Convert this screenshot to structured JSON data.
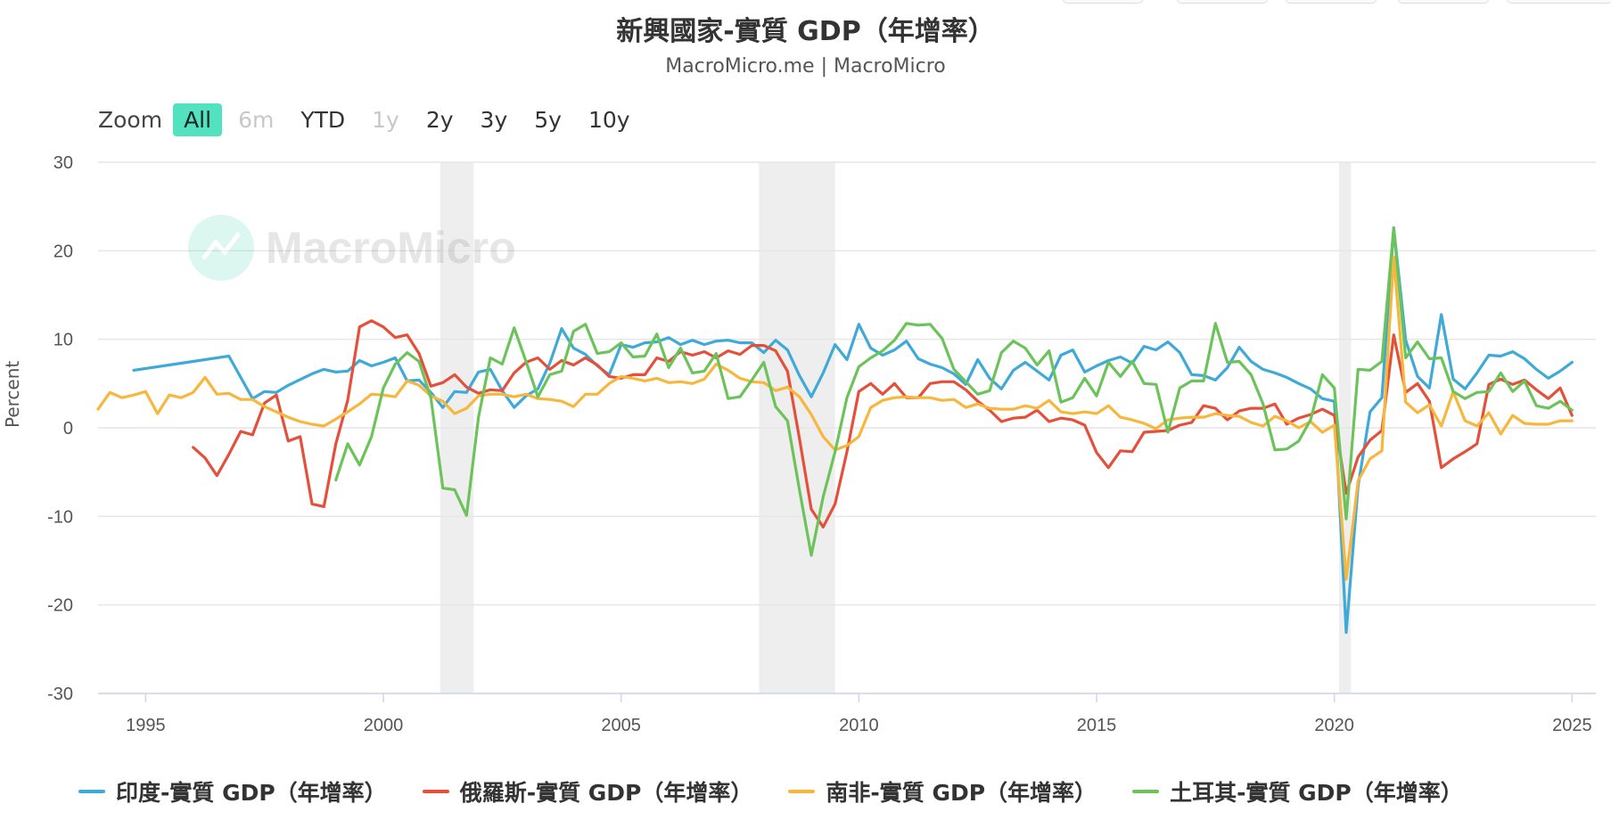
{
  "header": {
    "title": "新興國家-實質 GDP（年增率）",
    "subtitle": "MacroMicro.me | MacroMicro"
  },
  "watermark": "MacroMicro",
  "zoom": {
    "label": "Zoom",
    "buttons": [
      {
        "label": "All",
        "state": "active"
      },
      {
        "label": "6m",
        "state": "disabled"
      },
      {
        "label": "YTD",
        "state": "normal"
      },
      {
        "label": "1y",
        "state": "disabled"
      },
      {
        "label": "2y",
        "state": "normal"
      },
      {
        "label": "3y",
        "state": "normal"
      },
      {
        "label": "5y",
        "state": "normal"
      },
      {
        "label": "10y",
        "state": "normal"
      }
    ]
  },
  "colors": {
    "india": "#3fa9d8",
    "russia": "#e5503b",
    "south_africa": "#f6b73c",
    "turkey": "#6cc35a",
    "recession": "#eeeeee",
    "grid": "#e6e6e6",
    "active_button": "#53e2c0"
  },
  "chart_data": {
    "type": "line",
    "title": "新興國家-實質 GDP（年增率）",
    "ylabel": "Percent",
    "xlim": [
      1994,
      2025.5
    ],
    "ylim": [
      -30,
      30
    ],
    "y_ticks": [
      "30",
      "20",
      "10",
      "0",
      "-10",
      "-20",
      "-30"
    ],
    "x_ticks": [
      "1995",
      "2000",
      "2005",
      "2010",
      "2015",
      "2020",
      "2025"
    ],
    "grid": true,
    "legend_position": "bottom",
    "recessions": [
      [
        2001.2,
        2001.9
      ],
      [
        2007.9,
        2009.5
      ],
      [
        2020.1,
        2020.35
      ]
    ],
    "series": [
      {
        "name": "印度-實質 GDP（年增率）",
        "color": "#3fa9d8",
        "x": [
          1994.75,
          1995.75,
          1996.75,
          1997.25,
          1997.5,
          1997.75,
          1998.0,
          1998.5,
          1998.75,
          1999.0,
          1999.25,
          1999.5,
          1999.75,
          2000.0,
          2000.25,
          2000.5,
          2000.75,
          2001.0,
          2001.25,
          2001.5,
          2001.75,
          2002.0,
          2002.25,
          2002.5,
          2002.75,
          2003.0,
          2003.25,
          2003.5,
          2003.75,
          2004.0,
          2004.25,
          2004.5,
          2004.75,
          2005.0,
          2005.25,
          2005.5,
          2005.75,
          2006.0,
          2006.25,
          2006.5,
          2006.75,
          2007.0,
          2007.25,
          2007.5,
          2007.75,
          2008.0,
          2008.25,
          2008.5,
          2008.75,
          2009.0,
          2009.25,
          2009.5,
          2009.75,
          2010.0,
          2010.25,
          2010.5,
          2010.75,
          2011.0,
          2011.25,
          2011.5,
          2011.75,
          2012.0,
          2012.25,
          2012.5,
          2012.75,
          2013.0,
          2013.25,
          2013.5,
          2013.75,
          2014.0,
          2014.25,
          2014.5,
          2014.75,
          2015.0,
          2015.25,
          2015.5,
          2015.75,
          2016.0,
          2016.25,
          2016.5,
          2016.75,
          2017.0,
          2017.25,
          2017.5,
          2017.75,
          2018.0,
          2018.25,
          2018.5,
          2018.75,
          2019.0,
          2019.25,
          2019.5,
          2019.75,
          2020.0,
          2020.25,
          2020.5,
          2020.75,
          2021.0,
          2021.25,
          2021.5,
          2021.75,
          2022.0,
          2022.25,
          2022.5,
          2022.75,
          2023.0,
          2023.25,
          2023.5,
          2023.75,
          2024.0,
          2024.25,
          2024.5,
          2024.75,
          2025.0
        ],
        "values": [
          6.5,
          7.3,
          8.1,
          3.3,
          4.1,
          4.0,
          4.8,
          6.1,
          6.6,
          6.3,
          6.4,
          7.6,
          7.0,
          7.4,
          7.9,
          5.3,
          5.4,
          4.0,
          2.3,
          4.1,
          4.0,
          6.3,
          6.6,
          4.2,
          2.3,
          3.6,
          4.4,
          7.3,
          11.2,
          9.0,
          8.3,
          7.0,
          6.0,
          9.4,
          9.1,
          9.6,
          9.7,
          10.2,
          9.4,
          9.9,
          9.4,
          9.8,
          9.9,
          9.6,
          9.6,
          8.5,
          9.9,
          8.8,
          5.9,
          3.5,
          6.2,
          9.4,
          7.7,
          11.7,
          9.0,
          8.2,
          8.8,
          9.8,
          7.8,
          7.2,
          6.8,
          6.1,
          4.9,
          7.7,
          5.6,
          4.4,
          6.5,
          7.4,
          6.4,
          5.4,
          8.2,
          8.8,
          6.3,
          7.0,
          7.6,
          8.0,
          7.3,
          9.2,
          8.8,
          9.7,
          8.5,
          6.0,
          5.9,
          5.4,
          6.8,
          9.1,
          7.5,
          6.6,
          6.2,
          5.7,
          5.0,
          4.4,
          3.3,
          3.0,
          -23.1,
          -6.6,
          1.8,
          3.4,
          22.6,
          9.9,
          5.8,
          4.5,
          12.8,
          5.5,
          4.4,
          6.2,
          8.2,
          8.1,
          8.6,
          7.8,
          6.6,
          5.6,
          6.4,
          7.4
        ]
      },
      {
        "name": "俄羅斯-實質 GDP（年增率）",
        "color": "#e5503b",
        "x": [
          1996.0,
          1996.25,
          1996.5,
          1996.75,
          1997.0,
          1997.25,
          1997.5,
          1997.75,
          1998.0,
          1998.25,
          1998.5,
          1998.75,
          1999.0,
          1999.25,
          1999.5,
          1999.75,
          2000.0,
          2000.25,
          2000.5,
          2000.75,
          2001.0,
          2001.25,
          2001.5,
          2001.75,
          2002.0,
          2002.25,
          2002.5,
          2002.75,
          2003.0,
          2003.25,
          2003.5,
          2003.75,
          2004.0,
          2004.25,
          2004.5,
          2004.75,
          2005.0,
          2005.25,
          2005.5,
          2005.75,
          2006.0,
          2006.25,
          2006.5,
          2006.75,
          2007.0,
          2007.25,
          2007.5,
          2007.75,
          2008.0,
          2008.25,
          2008.5,
          2008.75,
          2009.0,
          2009.25,
          2009.5,
          2009.75,
          2010.0,
          2010.25,
          2010.5,
          2010.75,
          2011.0,
          2011.25,
          2011.5,
          2011.75,
          2012.0,
          2012.25,
          2012.5,
          2012.75,
          2013.0,
          2013.25,
          2013.5,
          2013.75,
          2014.0,
          2014.25,
          2014.5,
          2014.75,
          2015.0,
          2015.25,
          2015.5,
          2015.75,
          2016.0,
          2016.25,
          2016.5,
          2016.75,
          2017.0,
          2017.25,
          2017.5,
          2017.75,
          2018.0,
          2018.25,
          2018.5,
          2018.75,
          2019.0,
          2019.25,
          2019.5,
          2019.75,
          2020.0,
          2020.25,
          2020.5,
          2020.75,
          2021.0,
          2021.25,
          2021.5,
          2021.75,
          2022.0,
          2022.25,
          2022.5,
          2022.75,
          2023.0,
          2023.25,
          2023.5,
          2023.75,
          2024.0,
          2024.25,
          2024.5,
          2024.75,
          2025.0
        ],
        "values": [
          -2.2,
          -3.4,
          -5.4,
          -3.0,
          -0.4,
          -0.8,
          2.8,
          3.7,
          -1.5,
          -1.0,
          -8.6,
          -8.9,
          -1.8,
          3.1,
          11.4,
          12.1,
          11.4,
          10.2,
          10.5,
          8.4,
          4.7,
          5.1,
          6.0,
          4.6,
          3.9,
          4.3,
          4.2,
          6.2,
          7.4,
          7.9,
          6.6,
          7.6,
          7.1,
          7.9,
          7.1,
          5.8,
          5.6,
          6.0,
          6.0,
          7.9,
          7.5,
          8.6,
          8.2,
          8.6,
          7.9,
          8.7,
          8.3,
          9.3,
          9.3,
          8.7,
          6.4,
          -1.2,
          -9.2,
          -11.2,
          -8.6,
          -2.7,
          4.1,
          5.0,
          3.8,
          5.0,
          3.4,
          3.4,
          5.0,
          5.2,
          5.2,
          4.3,
          3.0,
          2.0,
          0.7,
          1.1,
          1.2,
          2.0,
          0.7,
          1.1,
          0.9,
          0.3,
          -2.8,
          -4.5,
          -2.6,
          -2.7,
          -0.5,
          -0.4,
          -0.3,
          0.3,
          0.6,
          2.5,
          2.2,
          0.9,
          1.9,
          2.2,
          2.2,
          2.7,
          0.4,
          1.1,
          1.5,
          2.1,
          1.4,
          -7.4,
          -3.3,
          -1.4,
          -0.3,
          10.5,
          4.0,
          5.0,
          3.0,
          -4.5,
          -3.5,
          -2.7,
          -1.8,
          4.9,
          5.5,
          4.9,
          5.4,
          4.3,
          3.3,
          4.5,
          1.4
        ]
      },
      {
        "name": "南非-實質 GDP（年增率）",
        "color": "#f6b73c",
        "x": [
          1994.0,
          1994.25,
          1994.5,
          1994.75,
          1995.0,
          1995.25,
          1995.5,
          1995.75,
          1996.0,
          1996.25,
          1996.5,
          1996.75,
          1997.0,
          1997.25,
          1997.5,
          1997.75,
          1998.0,
          1998.25,
          1998.5,
          1998.75,
          1999.0,
          1999.25,
          1999.5,
          1999.75,
          2000.0,
          2000.25,
          2000.5,
          2000.75,
          2001.0,
          2001.25,
          2001.5,
          2001.75,
          2002.0,
          2002.25,
          2002.5,
          2002.75,
          2003.0,
          2003.25,
          2003.5,
          2003.75,
          2004.0,
          2004.25,
          2004.5,
          2004.75,
          2005.0,
          2005.25,
          2005.5,
          2005.75,
          2006.0,
          2006.25,
          2006.5,
          2006.75,
          2007.0,
          2007.25,
          2007.5,
          2007.75,
          2008.0,
          2008.25,
          2008.5,
          2008.75,
          2009.0,
          2009.25,
          2009.5,
          2009.75,
          2010.0,
          2010.25,
          2010.5,
          2010.75,
          2011.0,
          2011.25,
          2011.5,
          2011.75,
          2012.0,
          2012.25,
          2012.5,
          2012.75,
          2013.0,
          2013.25,
          2013.5,
          2013.75,
          2014.0,
          2014.25,
          2014.5,
          2014.75,
          2015.0,
          2015.25,
          2015.5,
          2015.75,
          2016.0,
          2016.25,
          2016.5,
          2016.75,
          2017.0,
          2017.25,
          2017.5,
          2017.75,
          2018.0,
          2018.25,
          2018.5,
          2018.75,
          2019.0,
          2019.25,
          2019.5,
          2019.75,
          2020.0,
          2020.25,
          2020.5,
          2020.75,
          2021.0,
          2021.25,
          2021.5,
          2021.75,
          2022.0,
          2022.25,
          2022.5,
          2022.75,
          2023.0,
          2023.25,
          2023.5,
          2023.75,
          2024.0,
          2024.25,
          2024.5,
          2024.75,
          2025.0
        ],
        "values": [
          2.1,
          4.0,
          3.4,
          3.7,
          4.1,
          1.6,
          3.7,
          3.4,
          4.0,
          5.7,
          3.8,
          3.9,
          3.2,
          3.2,
          2.4,
          1.8,
          1.2,
          0.7,
          0.4,
          0.2,
          1.0,
          1.8,
          2.7,
          3.8,
          3.7,
          3.5,
          5.3,
          4.8,
          3.6,
          3.0,
          1.6,
          2.2,
          3.6,
          3.8,
          3.8,
          3.5,
          3.8,
          3.3,
          3.2,
          3.0,
          2.4,
          3.8,
          3.8,
          5.0,
          5.8,
          5.6,
          5.3,
          5.6,
          5.1,
          5.2,
          5.0,
          5.5,
          7.2,
          6.5,
          5.6,
          5.2,
          5.1,
          4.2,
          4.6,
          3.5,
          1.5,
          -1.0,
          -2.5,
          -2.0,
          -1.0,
          2.3,
          3.1,
          3.4,
          3.5,
          3.4,
          3.4,
          3.1,
          3.2,
          2.3,
          2.7,
          2.2,
          2.1,
          2.1,
          2.5,
          2.2,
          3.1,
          1.8,
          1.6,
          1.8,
          1.6,
          2.5,
          1.2,
          0.9,
          0.5,
          -0.1,
          0.9,
          1.1,
          1.2,
          1.2,
          1.6,
          1.4,
          1.3,
          0.6,
          0.2,
          1.3,
          0.8,
          0.0,
          0.7,
          -0.5,
          0.3,
          -17.1,
          -6.0,
          -3.5,
          -2.6,
          19.3,
          2.9,
          1.7,
          2.6,
          0.2,
          4.1,
          0.8,
          0.2,
          1.7,
          -0.7,
          1.4,
          0.5,
          0.4,
          0.4,
          0.8,
          0.8
        ]
      },
      {
        "name": "土耳其-實質 GDP（年增率）",
        "color": "#6cc35a",
        "x": [
          1999.0,
          1999.25,
          1999.5,
          1999.75,
          2000.0,
          2000.25,
          2000.5,
          2000.75,
          2001.0,
          2001.25,
          2001.5,
          2001.75,
          2002.0,
          2002.25,
          2002.5,
          2002.75,
          2003.0,
          2003.25,
          2003.5,
          2003.75,
          2004.0,
          2004.25,
          2004.5,
          2004.75,
          2005.0,
          2005.25,
          2005.5,
          2005.75,
          2006.0,
          2006.25,
          2006.5,
          2006.75,
          2007.0,
          2007.25,
          2007.5,
          2007.75,
          2008.0,
          2008.25,
          2008.5,
          2008.75,
          2009.0,
          2009.25,
          2009.5,
          2009.75,
          2010.0,
          2010.25,
          2010.5,
          2010.75,
          2011.0,
          2011.25,
          2011.5,
          2011.75,
          2012.0,
          2012.25,
          2012.5,
          2012.75,
          2013.0,
          2013.25,
          2013.5,
          2013.75,
          2014.0,
          2014.25,
          2014.5,
          2014.75,
          2015.0,
          2015.25,
          2015.5,
          2015.75,
          2016.0,
          2016.25,
          2016.5,
          2016.75,
          2017.0,
          2017.25,
          2017.5,
          2017.75,
          2018.0,
          2018.25,
          2018.5,
          2018.75,
          2019.0,
          2019.25,
          2019.5,
          2019.75,
          2020.0,
          2020.25,
          2020.5,
          2020.75,
          2021.0,
          2021.25,
          2021.5,
          2021.75,
          2022.0,
          2022.25,
          2022.5,
          2022.75,
          2023.0,
          2023.25,
          2023.5,
          2023.75,
          2024.0,
          2024.25,
          2024.5,
          2024.75,
          2025.0
        ],
        "values": [
          -5.9,
          -1.8,
          -4.2,
          -1.0,
          4.5,
          7.2,
          8.5,
          7.5,
          3.4,
          -6.8,
          -7.0,
          -9.9,
          1.2,
          7.9,
          7.2,
          11.3,
          7.5,
          3.5,
          6.0,
          6.4,
          10.9,
          11.7,
          8.4,
          8.6,
          9.6,
          8.0,
          8.1,
          10.6,
          6.8,
          9.0,
          6.2,
          6.4,
          8.4,
          3.3,
          3.5,
          5.4,
          7.4,
          2.4,
          0.8,
          -7.0,
          -14.4,
          -7.8,
          -2.7,
          3.4,
          6.9,
          7.9,
          8.7,
          9.9,
          11.8,
          11.6,
          11.7,
          10.1,
          6.6,
          5.2,
          3.8,
          4.2,
          8.5,
          9.8,
          9.0,
          7.1,
          8.7,
          2.9,
          3.4,
          5.6,
          3.6,
          7.4,
          5.8,
          7.5,
          5.0,
          4.9,
          -0.5,
          4.5,
          5.3,
          5.3,
          11.8,
          7.4,
          7.5,
          6.0,
          2.7,
          -2.5,
          -2.4,
          -1.5,
          0.9,
          6.0,
          4.5,
          -10.3,
          6.6,
          6.5,
          7.5,
          22.6,
          7.9,
          9.7,
          7.8,
          7.9,
          4.1,
          3.3,
          4.0,
          4.1,
          6.2,
          4.1,
          5.3,
          2.5,
          2.2,
          3.0,
          2.0
        ]
      }
    ]
  }
}
